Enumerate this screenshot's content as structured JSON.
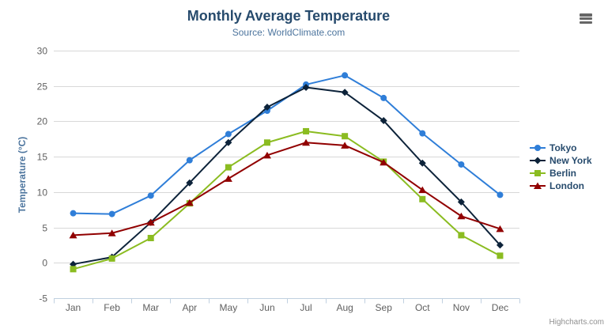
{
  "icons": {
    "context_menu": "hamburger-icon"
  },
  "credits": {
    "label": "Highcharts.com"
  },
  "chart_data": {
    "type": "line",
    "title": "Monthly Average Temperature",
    "subtitle": "Source: WorldClimate.com",
    "xlabel": "",
    "ylabel": "Temperature (°C)",
    "ylim": [
      -5,
      30
    ],
    "yticks": [
      -5,
      0,
      5,
      10,
      15,
      20,
      25,
      30
    ],
    "grid": true,
    "legend_position": "right",
    "categories": [
      "Jan",
      "Feb",
      "Mar",
      "Apr",
      "May",
      "Jun",
      "Jul",
      "Aug",
      "Sep",
      "Oct",
      "Nov",
      "Dec"
    ],
    "series": [
      {
        "name": "Tokyo",
        "color": "#2f7ed8",
        "marker": "circle",
        "values": [
          7.0,
          6.9,
          9.5,
          14.5,
          18.2,
          21.5,
          25.2,
          26.5,
          23.3,
          18.3,
          13.9,
          9.6
        ]
      },
      {
        "name": "New York",
        "color": "#0d233a",
        "marker": "diamond",
        "values": [
          -0.2,
          0.8,
          5.7,
          11.3,
          17.0,
          22.0,
          24.8,
          24.1,
          20.1,
          14.1,
          8.6,
          2.5
        ]
      },
      {
        "name": "Berlin",
        "color": "#8bbc21",
        "marker": "square",
        "values": [
          -0.9,
          0.6,
          3.5,
          8.4,
          13.5,
          17.0,
          18.6,
          17.9,
          14.3,
          9.0,
          3.9,
          1.0
        ]
      },
      {
        "name": "London",
        "color": "#910000",
        "marker": "triangle",
        "values": [
          3.9,
          4.2,
          5.7,
          8.5,
          11.9,
          15.2,
          17.0,
          16.6,
          14.2,
          10.3,
          6.6,
          4.8
        ]
      }
    ],
    "theme": {
      "title_color": "#274b6d",
      "subtitle_color": "#4d759e",
      "axis_title_color": "#4d759e",
      "axis_label_color": "#606060",
      "grid_color": "#d8d8d8",
      "axis_line_color": "#c0d0e0",
      "legend_text_color": "#274b6d",
      "credits_color": "#909090",
      "menu_icon_color": "#666666"
    }
  }
}
